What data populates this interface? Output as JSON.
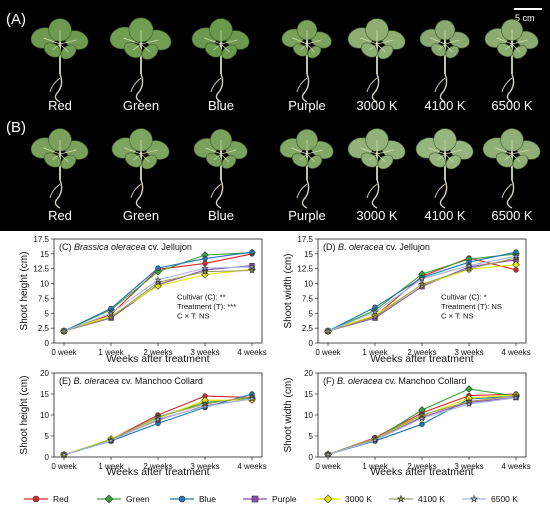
{
  "photo": {
    "scale_bar_label": "5 cm",
    "row_a": {
      "label": "(A)",
      "captions": [
        "Red",
        "Green",
        "Blue",
        "Purple",
        "3000 K",
        "4100 K",
        "6500 K"
      ]
    },
    "row_b": {
      "label": "(B)",
      "captions": [
        "Red",
        "Green",
        "Blue",
        "Purple",
        "3000 K",
        "4100 K",
        "6500 K"
      ]
    }
  },
  "legend": {
    "entries": [
      {
        "name": "Red",
        "color": "#d62a2a",
        "marker": "circle"
      },
      {
        "name": "Green",
        "color": "#3aa23a",
        "marker": "diamond"
      },
      {
        "name": "Blue",
        "color": "#1f77b4",
        "marker": "circle"
      },
      {
        "name": "Purple",
        "color": "#8a4fb5",
        "marker": "square"
      },
      {
        "name": "3000 K",
        "color": "#e6e600",
        "marker": "diamond"
      },
      {
        "name": "4100 K",
        "color": "#9aa060",
        "marker": "star"
      },
      {
        "name": "6500 K",
        "color": "#a7b6e0",
        "marker": "star"
      }
    ]
  },
  "chart_data": [
    {
      "type": "line",
      "panel": "(C)",
      "title_italic": "Brassica oleracea",
      "title_rest": " cv. Jellujon",
      "xlabel": "Weeks after treatment",
      "ylabel": "Shoot height (cm)",
      "categories": [
        "0 week",
        "1 week",
        "2 weeks",
        "3 weeks",
        "4 weeks"
      ],
      "ylim": [
        0,
        17.5
      ],
      "yticks": [
        "0",
        "2.5",
        "5",
        "7.5",
        "10",
        "12.5",
        "15",
        "17.5"
      ],
      "annotation": [
        "Cultivar (C): **",
        "Treatment (T): ***",
        "C × T: NS"
      ],
      "series": [
        {
          "name": "Red",
          "values": [
            2.0,
            4.8,
            12.4,
            13.4,
            15.0
          ]
        },
        {
          "name": "Green",
          "values": [
            2.0,
            5.6,
            12.0,
            14.8,
            15.2
          ]
        },
        {
          "name": "Blue",
          "values": [
            2.0,
            5.8,
            12.6,
            14.2,
            15.3
          ]
        },
        {
          "name": "Purple",
          "values": [
            2.0,
            4.2,
            9.8,
            12.3,
            13.0
          ]
        },
        {
          "name": "3000 K",
          "values": [
            2.0,
            4.6,
            9.6,
            11.5,
            12.4
          ]
        },
        {
          "name": "4100 K",
          "values": [
            2.0,
            4.3,
            10.2,
            12.0,
            12.2
          ]
        },
        {
          "name": "6500 K",
          "values": [
            2.0,
            5.0,
            10.6,
            12.6,
            12.8
          ]
        }
      ]
    },
    {
      "type": "line",
      "panel": "(D)",
      "title_italic": "B. oleracea",
      "title_rest": " cv. Jellujon",
      "xlabel": "Weeks after treatment",
      "ylabel": "Shoot width (cm)",
      "categories": [
        "0 week",
        "1 week",
        "2 weeks",
        "3 weeks",
        "4 weeks"
      ],
      "ylim": [
        0,
        17.5
      ],
      "yticks": [
        "0",
        "2.5",
        "5",
        "7.5",
        "10",
        "12.5",
        "15",
        "17.5"
      ],
      "annotation": [
        "Cultivar (C): *",
        "Treatment (T): NS",
        "C × T: NS"
      ],
      "series": [
        {
          "name": "Red",
          "values": [
            2.0,
            4.5,
            11.2,
            14.3,
            12.3
          ]
        },
        {
          "name": "Green",
          "values": [
            2.0,
            5.5,
            11.6,
            14.1,
            15.0
          ]
        },
        {
          "name": "Blue",
          "values": [
            2.0,
            6.0,
            11.0,
            13.6,
            15.3
          ]
        },
        {
          "name": "Purple",
          "values": [
            2.0,
            4.2,
            9.5,
            12.8,
            14.0
          ]
        },
        {
          "name": "3000 K",
          "values": [
            2.0,
            4.7,
            9.8,
            12.4,
            13.2
          ]
        },
        {
          "name": "4100 K",
          "values": [
            2.0,
            4.4,
            9.9,
            12.5,
            14.3
          ]
        },
        {
          "name": "6500 K",
          "values": [
            2.0,
            5.2,
            10.8,
            13.0,
            14.6
          ]
        }
      ]
    },
    {
      "type": "line",
      "panel": "(E)",
      "title_italic": "B. oleracea",
      "title_rest": " cv. Manchoo Collard",
      "xlabel": "Weeks after treatment",
      "ylabel": "Shoot height (cm)",
      "categories": [
        "0 week",
        "1 week",
        "2 weeks",
        "3 weeks",
        "4 weeks"
      ],
      "ylim": [
        0,
        20
      ],
      "yticks": [
        "0",
        "5",
        "10",
        "15",
        "20"
      ],
      "annotation": [],
      "series": [
        {
          "name": "Red",
          "values": [
            0.5,
            4.2,
            10.0,
            14.5,
            14.2
          ]
        },
        {
          "name": "Green",
          "values": [
            0.5,
            4.0,
            9.5,
            13.0,
            14.0
          ]
        },
        {
          "name": "Blue",
          "values": [
            0.5,
            3.8,
            8.0,
            11.8,
            15.0
          ]
        },
        {
          "name": "Purple",
          "values": [
            0.5,
            4.0,
            8.8,
            12.2,
            13.8
          ]
        },
        {
          "name": "3000 K",
          "values": [
            0.5,
            4.3,
            9.2,
            13.5,
            13.6
          ]
        },
        {
          "name": "4100 K",
          "values": [
            0.5,
            4.1,
            9.6,
            12.6,
            14.4
          ]
        },
        {
          "name": "6500 K",
          "values": [
            0.5,
            3.9,
            9.0,
            12.0,
            13.9
          ]
        }
      ]
    },
    {
      "type": "line",
      "panel": "(F)",
      "title_italic": "B. oleracea",
      "title_rest": " cv. Manchoo Collard",
      "xlabel": "Weeks after treatment",
      "ylabel": "Shoot width (cm)",
      "categories": [
        "0 week",
        "1 week",
        "2 weeks",
        "3 weeks",
        "4 weeks"
      ],
      "ylim": [
        0,
        20
      ],
      "yticks": [
        "0",
        "5",
        "10",
        "15",
        "20"
      ],
      "annotation": [],
      "series": [
        {
          "name": "Red",
          "values": [
            0.6,
            4.6,
            10.5,
            14.6,
            15.0
          ]
        },
        {
          "name": "Green",
          "values": [
            0.6,
            4.2,
            11.2,
            16.2,
            14.5
          ]
        },
        {
          "name": "Blue",
          "values": [
            0.6,
            3.8,
            7.8,
            13.8,
            14.5
          ]
        },
        {
          "name": "Purple",
          "values": [
            0.6,
            4.3,
            9.5,
            13.0,
            14.2
          ]
        },
        {
          "name": "3000 K",
          "values": [
            0.6,
            4.4,
            9.8,
            14.0,
            14.8
          ]
        },
        {
          "name": "4100 K",
          "values": [
            0.6,
            4.5,
            10.0,
            13.2,
            14.6
          ]
        },
        {
          "name": "6500 K",
          "values": [
            0.6,
            4.0,
            9.2,
            12.6,
            14.1
          ]
        }
      ]
    }
  ]
}
